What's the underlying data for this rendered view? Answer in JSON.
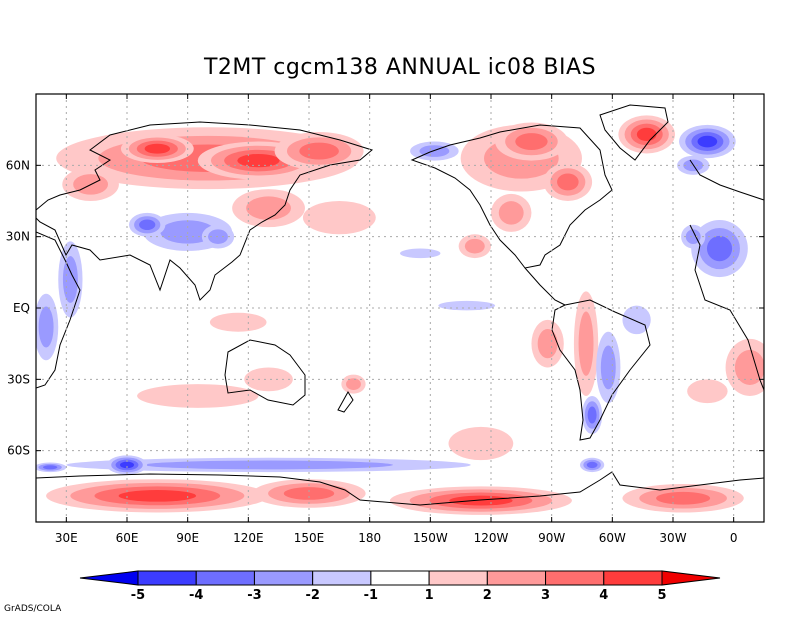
{
  "title": "T2MT cgcm138 ANNUAL ic08 BIAS",
  "credit": "GrADS/COLA",
  "chart_data": {
    "type": "map",
    "variable": "T2MT",
    "model": "cgcm138",
    "season": "ANNUAL",
    "case": "ic08",
    "field": "BIAS",
    "projection": "cylindrical equidistant",
    "lon_range": [
      15,
      375
    ],
    "lat_range": [
      -90,
      90
    ],
    "grid": true,
    "lat_ticks": [
      {
        "value": 60,
        "label": "60N"
      },
      {
        "value": 30,
        "label": "30N"
      },
      {
        "value": 0,
        "label": "EQ"
      },
      {
        "value": -30,
        "label": "30S"
      },
      {
        "value": -60,
        "label": "60S"
      }
    ],
    "lon_ticks": [
      {
        "value": 30,
        "label": "30E"
      },
      {
        "value": 60,
        "label": "60E"
      },
      {
        "value": 90,
        "label": "90E"
      },
      {
        "value": 120,
        "label": "120E"
      },
      {
        "value": 150,
        "label": "150E"
      },
      {
        "value": 180,
        "label": "180"
      },
      {
        "value": 210,
        "label": "150W"
      },
      {
        "value": 240,
        "label": "120W"
      },
      {
        "value": 270,
        "label": "90W"
      },
      {
        "value": 300,
        "label": "60W"
      },
      {
        "value": 330,
        "label": "30W"
      },
      {
        "value": 360,
        "label": "0"
      }
    ],
    "colorbar": {
      "labels": [
        "-5",
        "-4",
        "-3",
        "-2",
        "-1",
        "1",
        "2",
        "3",
        "4",
        "5"
      ],
      "colors": [
        "#0000f0",
        "#3c3cff",
        "#6e6eff",
        "#9a9aff",
        "#c8c8ff",
        "#ffffff",
        "#ffc8c8",
        "#ff9a9a",
        "#ff6e6e",
        "#ff3c3c",
        "#f00000"
      ]
    },
    "anomalies": [
      {
        "lon": 100,
        "lat": 63,
        "rx": 75,
        "ry": 13,
        "level": 3
      },
      {
        "lon": 125,
        "lat": 62,
        "rx": 30,
        "ry": 8,
        "level": 4
      },
      {
        "lon": 75,
        "lat": 67,
        "rx": 18,
        "ry": 6,
        "level": 4
      },
      {
        "lon": 155,
        "lat": 66,
        "rx": 22,
        "ry": 8,
        "level": 3
      },
      {
        "lon": 42,
        "lat": 52,
        "rx": 14,
        "ry": 7,
        "level": 2
      },
      {
        "lon": 130,
        "lat": 42,
        "rx": 18,
        "ry": 8,
        "level": 2
      },
      {
        "lon": 165,
        "lat": 38,
        "rx": 18,
        "ry": 7,
        "level": 1
      },
      {
        "lon": 90,
        "lat": 32,
        "rx": 22,
        "ry": 8,
        "level": -2
      },
      {
        "lon": 70,
        "lat": 35,
        "rx": 9,
        "ry": 5,
        "level": -3
      },
      {
        "lon": 105,
        "lat": 30,
        "rx": 8,
        "ry": 5,
        "level": -2
      },
      {
        "lon": 32,
        "lat": 12,
        "rx": 6,
        "ry": 16,
        "level": -2
      },
      {
        "lon": 20,
        "lat": -8,
        "rx": 6,
        "ry": 14,
        "level": -2
      },
      {
        "lon": 205,
        "lat": 23,
        "rx": 10,
        "ry": 2,
        "level": -1
      },
      {
        "lon": 228,
        "lat": 1,
        "rx": 14,
        "ry": 2,
        "level": -1
      },
      {
        "lon": 255,
        "lat": 63,
        "rx": 30,
        "ry": 14,
        "level": 2
      },
      {
        "lon": 260,
        "lat": 70,
        "rx": 18,
        "ry": 8,
        "level": 3
      },
      {
        "lon": 278,
        "lat": 53,
        "rx": 12,
        "ry": 8,
        "level": 3
      },
      {
        "lon": 250,
        "lat": 40,
        "rx": 10,
        "ry": 8,
        "level": 2
      },
      {
        "lon": 232,
        "lat": 26,
        "rx": 8,
        "ry": 5,
        "level": 2
      },
      {
        "lon": 212,
        "lat": 66,
        "rx": 12,
        "ry": 4,
        "level": -2
      },
      {
        "lon": 317,
        "lat": 73,
        "rx": 14,
        "ry": 8,
        "level": 4
      },
      {
        "lon": 347,
        "lat": 70,
        "rx": 14,
        "ry": 7,
        "level": -4
      },
      {
        "lon": 340,
        "lat": 60,
        "rx": 8,
        "ry": 4,
        "level": -2
      },
      {
        "lon": 353,
        "lat": 25,
        "rx": 14,
        "ry": 12,
        "level": -3
      },
      {
        "lon": 340,
        "lat": 30,
        "rx": 6,
        "ry": 5,
        "level": -2
      },
      {
        "lon": 287,
        "lat": -15,
        "rx": 6,
        "ry": 22,
        "level": 2
      },
      {
        "lon": 268,
        "lat": -15,
        "rx": 8,
        "ry": 10,
        "level": 2
      },
      {
        "lon": 298,
        "lat": -25,
        "rx": 6,
        "ry": 15,
        "level": -2
      },
      {
        "lon": 290,
        "lat": -45,
        "rx": 5,
        "ry": 8,
        "level": -3
      },
      {
        "lon": 312,
        "lat": -5,
        "rx": 7,
        "ry": 6,
        "level": -1
      },
      {
        "lon": 368,
        "lat": -25,
        "rx": 12,
        "ry": 12,
        "level": 2
      },
      {
        "lon": 347,
        "lat": -35,
        "rx": 10,
        "ry": 5,
        "level": 1
      },
      {
        "lon": 95,
        "lat": -37,
        "rx": 30,
        "ry": 5,
        "level": 1
      },
      {
        "lon": 130,
        "lat": -30,
        "rx": 12,
        "ry": 5,
        "level": 1
      },
      {
        "lon": 172,
        "lat": -32,
        "rx": 6,
        "ry": 4,
        "level": 2
      },
      {
        "lon": 115,
        "lat": -6,
        "rx": 14,
        "ry": 4,
        "level": 1
      },
      {
        "lon": 235,
        "lat": -57,
        "rx": 16,
        "ry": 7,
        "level": 1
      },
      {
        "lon": 130,
        "lat": -66,
        "rx": 100,
        "ry": 3,
        "level": -2
      },
      {
        "lon": 60,
        "lat": -66,
        "rx": 10,
        "ry": 4,
        "level": -4
      },
      {
        "lon": 22,
        "lat": -67,
        "rx": 8,
        "ry": 2,
        "level": -3
      },
      {
        "lon": 290,
        "lat": -66,
        "rx": 6,
        "ry": 3,
        "level": -3
      },
      {
        "lon": 75,
        "lat": -79,
        "rx": 55,
        "ry": 7,
        "level": 4
      },
      {
        "lon": 150,
        "lat": -78,
        "rx": 28,
        "ry": 6,
        "level": 3
      },
      {
        "lon": 235,
        "lat": -81,
        "rx": 45,
        "ry": 6,
        "level": 4
      },
      {
        "lon": 335,
        "lat": -80,
        "rx": 30,
        "ry": 6,
        "level": 3
      }
    ]
  }
}
